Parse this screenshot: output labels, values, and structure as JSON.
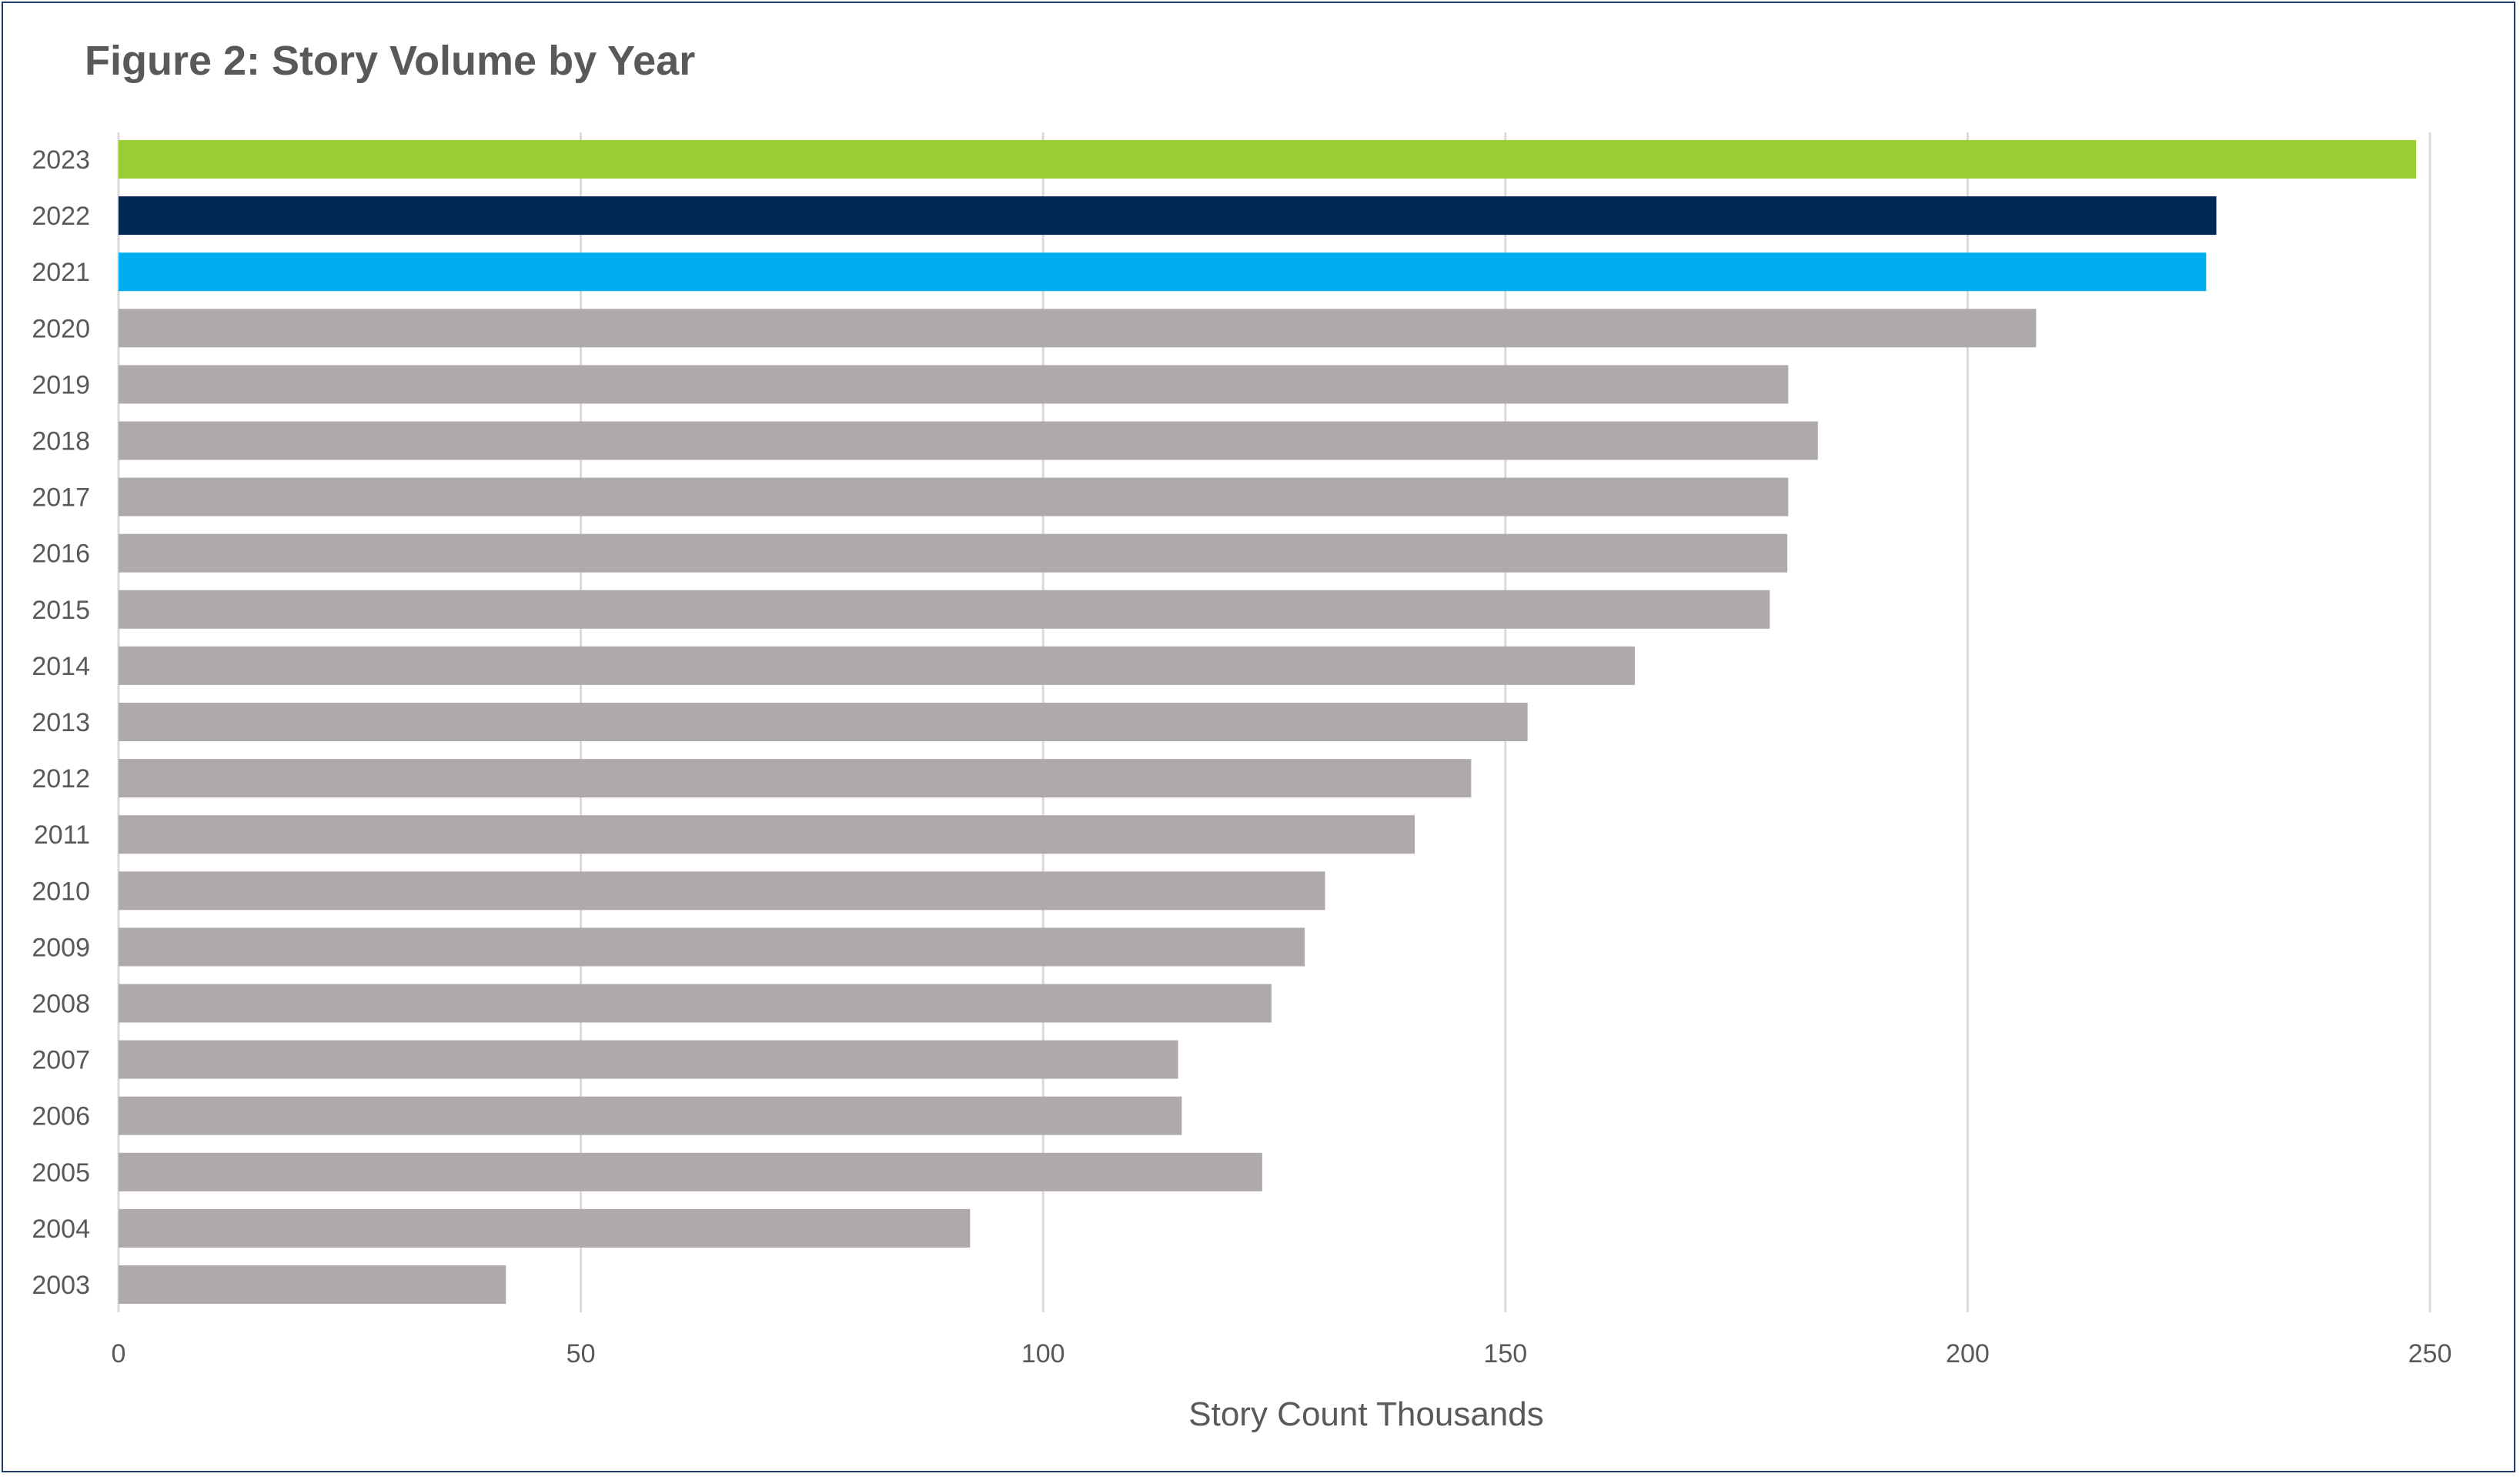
{
  "chart_data": {
    "type": "bar",
    "orientation": "horizontal",
    "title": "Figure 2: Story Volume by Year",
    "xlabel": "Story Count Thousands",
    "ylabel": "",
    "xlim": [
      0,
      250
    ],
    "xticks": [
      0,
      50,
      100,
      150,
      200,
      250
    ],
    "grid": "vertical",
    "categories": [
      "2023",
      "2022",
      "2021",
      "2020",
      "2019",
      "2018",
      "2017",
      "2016",
      "2015",
      "2014",
      "2013",
      "2012",
      "2011",
      "2010",
      "2009",
      "2008",
      "2007",
      "2006",
      "2005",
      "2004",
      "2003"
    ],
    "values": [
      248.5,
      226.9,
      225.8,
      207.4,
      180.6,
      183.8,
      180.6,
      180.5,
      178.6,
      164.0,
      152.4,
      146.3,
      140.2,
      130.5,
      128.3,
      124.7,
      114.6,
      115.0,
      123.7,
      92.1,
      41.9
    ],
    "colors": [
      "#9acd32",
      "#002855",
      "#00aeef",
      "#afaaa9",
      "#afaaa9",
      "#afaaa9",
      "#afaaa9",
      "#afaaa9",
      "#afaaa9",
      "#afaaa9",
      "#afaaa9",
      "#afaaa9",
      "#afaaa9",
      "#afaaa9",
      "#afaaa9",
      "#afaaa9",
      "#afaaa9",
      "#afaaa9",
      "#afaaa9",
      "#afaaa9",
      "#afaaa9"
    ]
  }
}
